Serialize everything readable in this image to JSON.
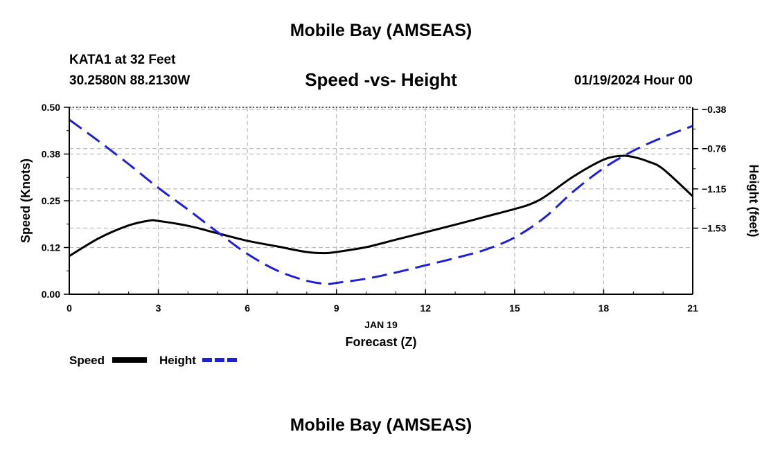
{
  "header": {
    "title": "Mobile Bay (AMSEAS)",
    "station": "KATA1 at 32 Feet",
    "coordinates": "30.2580N  88.2130W",
    "subtitle": "Speed -vs- Height",
    "datetime": "01/19/2024 Hour 00"
  },
  "footer": {
    "title": "Mobile Bay (AMSEAS)"
  },
  "colors": {
    "speed": "#000000",
    "height": "#1f1fd6",
    "grid": "#bbbbbb"
  },
  "chart_data": {
    "type": "line",
    "title": "Speed -vs- Height",
    "xlabel": "Forecast (Z)",
    "x_date_label": "JAN 19",
    "ylabel_left": "Speed (Knots)",
    "ylabel_right": "Height (feet)",
    "xlim": [
      0,
      21
    ],
    "ylim_left": [
      0.0,
      0.5
    ],
    "ylim_right": [
      -2.17,
      -0.36
    ],
    "x_ticks": [
      0,
      3,
      6,
      9,
      12,
      15,
      18,
      21
    ],
    "x_tick_labels": [
      "0",
      "3",
      "6",
      "9",
      "12",
      "15",
      "18",
      "21"
    ],
    "y_left_ticks": [
      0.0,
      0.125,
      0.25,
      0.375,
      0.5
    ],
    "y_left_tick_labels": [
      "0.00",
      "0.12",
      "0.25",
      "0.38",
      "0.50"
    ],
    "y_right_ticks": [
      -0.38,
      -0.76,
      -1.15,
      -1.53
    ],
    "y_right_tick_labels": [
      "−0.38",
      "−0.76",
      "−1.15",
      "−1.53"
    ],
    "grid": true,
    "legend": [
      {
        "name": "Speed",
        "style": "solid"
      },
      {
        "name": "Height",
        "style": "dashed"
      }
    ],
    "series": [
      {
        "name": "Speed",
        "axis": "left",
        "style": "solid",
        "x": [
          0,
          1,
          2,
          2.7,
          3,
          4,
          5,
          6,
          7,
          8,
          8.6,
          9,
          10,
          11,
          12,
          13,
          14,
          15,
          15.5,
          16,
          17,
          18,
          18.6,
          19,
          19.5,
          20,
          21
        ],
        "y": [
          0.102,
          0.15,
          0.184,
          0.197,
          0.196,
          0.183,
          0.163,
          0.143,
          0.128,
          0.113,
          0.11,
          0.113,
          0.126,
          0.146,
          0.166,
          0.186,
          0.207,
          0.228,
          0.24,
          0.26,
          0.316,
          0.36,
          0.37,
          0.367,
          0.355,
          0.335,
          0.262
        ]
      },
      {
        "name": "Height",
        "axis": "right",
        "style": "dashed",
        "x": [
          0,
          1,
          2,
          3,
          4,
          5,
          6,
          7,
          8,
          8.7,
          9,
          10,
          11,
          12,
          13,
          14,
          15,
          16,
          17,
          18,
          19,
          20,
          21
        ],
        "y": [
          -0.48,
          -0.69,
          -0.91,
          -1.14,
          -1.35,
          -1.57,
          -1.78,
          -1.94,
          -2.04,
          -2.07,
          -2.06,
          -2.02,
          -1.96,
          -1.89,
          -1.82,
          -1.74,
          -1.62,
          -1.43,
          -1.17,
          -0.95,
          -0.78,
          -0.65,
          -0.54
        ]
      }
    ]
  }
}
